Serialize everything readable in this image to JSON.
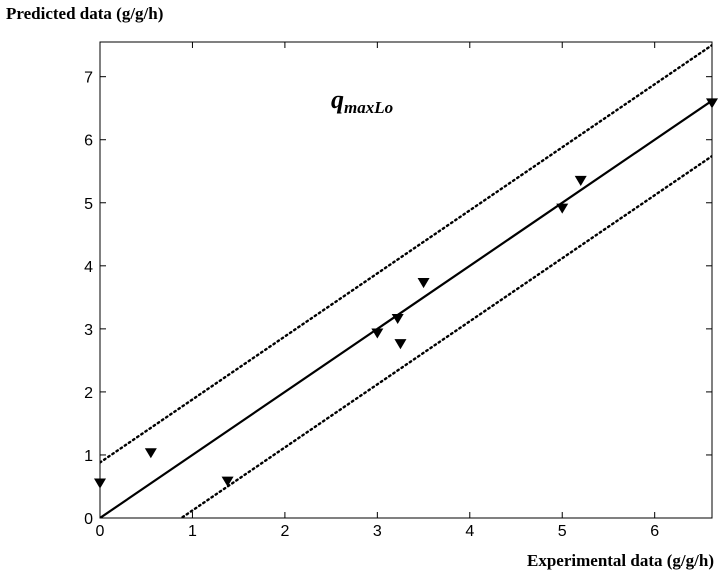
{
  "chart_data": {
    "type": "scatter",
    "title": "",
    "xlabel": "Experimental data (g/g/h)",
    "ylabel": "Predicted data (g/g/h)",
    "annotation": {
      "main": "q",
      "sub": "maxLo"
    },
    "xlim": [
      0,
      6.62
    ],
    "ylim": [
      0,
      7.55
    ],
    "xticks": [
      0,
      1,
      2,
      3,
      4,
      5,
      6
    ],
    "yticks": [
      0,
      1,
      2,
      3,
      4,
      5,
      6,
      7
    ],
    "grid": false,
    "marker": "downward-triangle",
    "points": [
      {
        "x": 0.0,
        "y": 0.57
      },
      {
        "x": 0.55,
        "y": 1.05
      },
      {
        "x": 1.38,
        "y": 0.6
      },
      {
        "x": 3.0,
        "y": 2.95
      },
      {
        "x": 3.22,
        "y": 3.18
      },
      {
        "x": 3.25,
        "y": 2.78
      },
      {
        "x": 3.5,
        "y": 3.75
      },
      {
        "x": 5.0,
        "y": 4.93
      },
      {
        "x": 5.2,
        "y": 5.37
      },
      {
        "x": 6.62,
        "y": 6.6
      }
    ],
    "lines": [
      {
        "style": "solid",
        "intercept": 0.0,
        "slope": 1.0
      },
      {
        "style": "dotted",
        "intercept": 0.88,
        "slope": 1.0
      },
      {
        "style": "dotted",
        "intercept": -0.88,
        "slope": 1.0
      }
    ]
  }
}
